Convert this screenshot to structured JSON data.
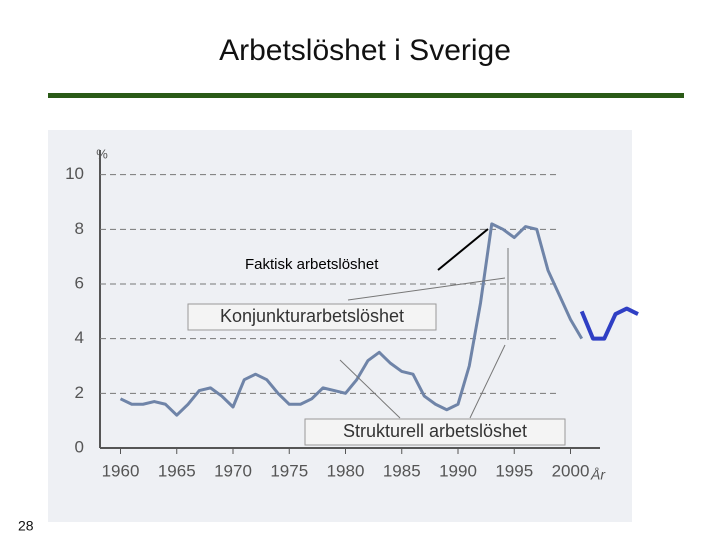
{
  "slide_number": "28",
  "chart_data": {
    "type": "line",
    "title": "Arbetslöshet i Sverige",
    "y_label": "%",
    "x_label": "År",
    "annotations": [
      "Faktisk arbetslöshet",
      "Konjunkturarbetslöshet",
      "Strukturell arbetslöshet"
    ],
    "series": [
      {
        "color": "#6f84a8",
        "x": [
          1960,
          1961,
          1962,
          1963,
          1964,
          1965,
          1966,
          1967,
          1968,
          1969,
          1970,
          1971,
          1972,
          1973,
          1974,
          1975,
          1976,
          1977,
          1978,
          1979,
          1980,
          1981,
          1982,
          1983,
          1984,
          1985,
          1986,
          1987,
          1988,
          1989,
          1990,
          1991,
          1992,
          1993,
          1994,
          1995,
          1996,
          1997,
          1998,
          1999,
          2000,
          2001
        ],
        "values": [
          1.8,
          1.6,
          1.6,
          1.7,
          1.6,
          1.2,
          1.6,
          2.1,
          2.2,
          1.9,
          1.5,
          2.5,
          2.7,
          2.5,
          2.0,
          1.6,
          1.6,
          1.8,
          2.2,
          2.1,
          2.0,
          2.5,
          3.2,
          3.5,
          3.1,
          2.8,
          2.7,
          1.9,
          1.6,
          1.4,
          1.6,
          3.0,
          5.3,
          8.2,
          8.0,
          7.7,
          8.1,
          8.0,
          6.5,
          5.6,
          4.7,
          4.0
        ]
      },
      {
        "color": "#2f3fc4",
        "x": [
          2001,
          2002,
          2003,
          2004,
          2005,
          2006
        ],
        "values": [
          5.0,
          4.0,
          4.0,
          4.9,
          5.1,
          4.9
        ]
      }
    ],
    "xlim": [
      1958,
      2006
    ],
    "xticks": [
      1960,
      1965,
      1970,
      1975,
      1980,
      1985,
      1990,
      1995,
      2000
    ],
    "ylim": [
      0,
      10.5
    ],
    "yticks": [
      0,
      2,
      4,
      6,
      8,
      10
    ],
    "grid": true
  }
}
